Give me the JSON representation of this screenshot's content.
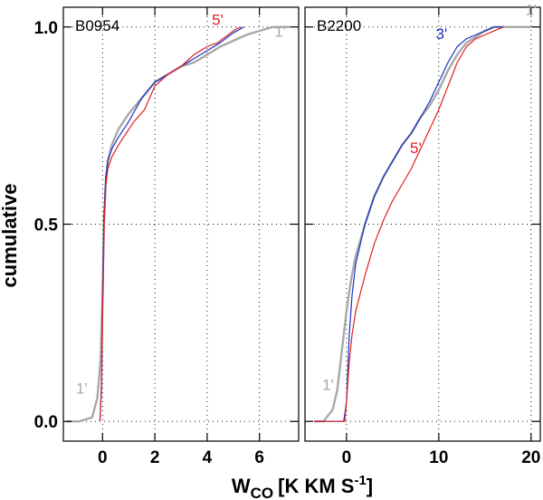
{
  "chart_data": [
    {
      "type": "line",
      "panel_title": "B0954",
      "xlim": [
        -1.5,
        7.5
      ],
      "ylim": [
        -0.05,
        1.05
      ],
      "xticks": [
        0,
        2,
        4,
        6
      ],
      "yticks": [
        0.0,
        0.5,
        1.0
      ],
      "ytick_labels": [
        "0.0",
        "0.5",
        "1.0"
      ],
      "ylabel": "cumulative",
      "grid": true,
      "annotations": [
        {
          "text": "5'",
          "x": 4.4,
          "y": 1.005,
          "color": "#e0201f"
        },
        {
          "text": "1'",
          "x": 6.8,
          "y": 0.975,
          "color": "#a8a8a8"
        },
        {
          "text": "1'",
          "x": -0.8,
          "y": 0.07,
          "color": "#a8a8a8"
        }
      ],
      "series": [
        {
          "name": "1'",
          "color": "#a8a8a8",
          "width": 2.4,
          "x": [
            -1.4,
            -0.9,
            -0.4,
            -0.2,
            -0.08,
            0.0,
            0.05,
            0.12,
            0.2,
            0.35,
            0.6,
            1.0,
            1.5,
            2.0,
            2.5,
            3.0,
            3.5,
            4.0,
            4.5,
            5.0,
            5.5,
            6.0,
            6.5,
            6.8,
            7.0,
            7.2
          ],
          "y": [
            0.0,
            0.0,
            0.01,
            0.06,
            0.15,
            0.32,
            0.5,
            0.6,
            0.66,
            0.7,
            0.74,
            0.78,
            0.82,
            0.86,
            0.88,
            0.9,
            0.91,
            0.93,
            0.95,
            0.965,
            0.98,
            0.99,
            1.0,
            1.0,
            1.0,
            1.0
          ]
        },
        {
          "name": "3'",
          "color": "#1a2fc7",
          "width": 1.2,
          "x": [
            -0.1,
            -0.04,
            0.0,
            0.05,
            0.12,
            0.2,
            0.35,
            0.6,
            1.0,
            1.5,
            2.0,
            2.5,
            3.0,
            3.5,
            4.0,
            4.5,
            5.0,
            5.4
          ],
          "y": [
            0.0,
            0.1,
            0.3,
            0.52,
            0.62,
            0.66,
            0.69,
            0.72,
            0.76,
            0.82,
            0.86,
            0.88,
            0.9,
            0.92,
            0.94,
            0.96,
            0.985,
            1.0
          ]
        },
        {
          "name": "5'",
          "color": "#e0201f",
          "width": 1.2,
          "x": [
            -0.1,
            -0.04,
            0.0,
            0.06,
            0.12,
            0.2,
            0.35,
            0.6,
            0.9,
            1.2,
            1.6,
            2.0,
            2.5,
            3.0,
            3.5,
            4.0,
            4.4,
            4.8,
            5.1,
            5.3
          ],
          "y": [
            0.0,
            0.08,
            0.25,
            0.5,
            0.6,
            0.64,
            0.67,
            0.7,
            0.73,
            0.76,
            0.79,
            0.85,
            0.88,
            0.9,
            0.93,
            0.95,
            0.96,
            0.98,
            0.995,
            1.0
          ]
        }
      ]
    },
    {
      "type": "line",
      "panel_title": "B2200",
      "xlim": [
        -4.5,
        21
      ],
      "ylim": [
        -0.05,
        1.05
      ],
      "xticks": [
        0,
        10,
        20
      ],
      "yticks": [
        0.0,
        0.5,
        1.0
      ],
      "ytick_labels": [
        "0.0",
        "0.5",
        "1.0"
      ],
      "grid": true,
      "annotations": [
        {
          "text": "3'",
          "x": 10.3,
          "y": 0.97,
          "color": "#1a2fc7"
        },
        {
          "text": "5'",
          "x": 7.5,
          "y": 0.68,
          "color": "#e0201f"
        },
        {
          "text": "1'",
          "x": 20.0,
          "y": 1.03,
          "color": "#a8a8a8"
        },
        {
          "text": "1'",
          "x": -2.0,
          "y": 0.08,
          "color": "#a8a8a8"
        }
      ],
      "series": [
        {
          "name": "1'",
          "color": "#a8a8a8",
          "width": 2.4,
          "x": [
            -3.5,
            -2.5,
            -1.5,
            -1.0,
            -0.5,
            0.0,
            0.5,
            1.0,
            2.0,
            3.0,
            4.0,
            5.0,
            6.0,
            7.0,
            8.0,
            9.0,
            10.0,
            11.0,
            12.0,
            13.0,
            14.0,
            15.0,
            16.0,
            17.0,
            18.0,
            19.0,
            20.0
          ],
          "y": [
            0.0,
            0.0,
            0.03,
            0.08,
            0.18,
            0.28,
            0.36,
            0.42,
            0.5,
            0.57,
            0.62,
            0.66,
            0.7,
            0.73,
            0.77,
            0.8,
            0.84,
            0.89,
            0.93,
            0.96,
            0.975,
            0.99,
            1.0,
            1.0,
            1.0,
            1.0,
            1.0
          ]
        },
        {
          "name": "3'",
          "color": "#1a2fc7",
          "width": 1.2,
          "x": [
            -3.5,
            -2.0,
            -1.0,
            -0.3,
            0.0,
            0.3,
            0.6,
            1.0,
            2.0,
            3.0,
            4.0,
            5.0,
            6.0,
            7.0,
            8.0,
            9.0,
            10.0,
            11.0,
            12.0,
            13.0,
            14.0,
            15.0,
            16.0,
            17.0
          ],
          "y": [
            0.0,
            0.0,
            0.0,
            0.0,
            0.05,
            0.22,
            0.32,
            0.4,
            0.5,
            0.57,
            0.62,
            0.66,
            0.7,
            0.73,
            0.77,
            0.81,
            0.86,
            0.91,
            0.95,
            0.97,
            0.98,
            0.99,
            1.0,
            1.0
          ]
        },
        {
          "name": "5'",
          "color": "#e0201f",
          "width": 1.2,
          "x": [
            -3.5,
            -1.5,
            -0.2,
            0.0,
            0.3,
            0.6,
            1.0,
            2.0,
            3.0,
            4.0,
            5.0,
            6.0,
            7.0,
            8.0,
            9.0,
            10.0,
            11.0,
            12.0,
            13.0,
            14.0,
            15.0,
            16.0,
            17.0
          ],
          "y": [
            0.0,
            0.0,
            0.0,
            0.05,
            0.15,
            0.22,
            0.28,
            0.37,
            0.45,
            0.51,
            0.56,
            0.6,
            0.64,
            0.69,
            0.74,
            0.79,
            0.85,
            0.91,
            0.95,
            0.97,
            0.98,
            0.99,
            1.0
          ]
        }
      ]
    }
  ],
  "xlabel_main": "W",
  "xlabel_sub": "CO",
  "xlabel_unit": "[K KM S",
  "xlabel_sup": "-1",
  "xlabel_close": "]"
}
